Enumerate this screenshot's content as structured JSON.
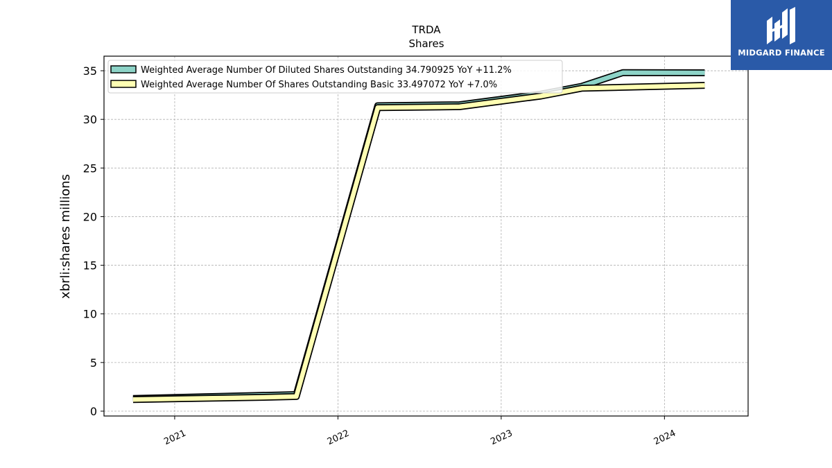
{
  "chart_data": {
    "type": "line",
    "title": "TRDA",
    "subtitle": "Shares",
    "xlabel": "",
    "ylabel": "xbrli:shares millions",
    "xlim": [
      "2020-07-27",
      "2024-07-06"
    ],
    "ylim": [
      -0.5,
      36.5
    ],
    "x_ticks": [
      "2021",
      "2022",
      "2023",
      "2024"
    ],
    "y_ticks": [
      0,
      5,
      10,
      15,
      20,
      25,
      30,
      35
    ],
    "grid": true,
    "legend_position": "top-left",
    "x": [
      "2020-09-30",
      "2021-06-30",
      "2021-09-30",
      "2022-03-31",
      "2022-09-30",
      "2023-03-31",
      "2023-06-30",
      "2023-09-30",
      "2024-03-31"
    ],
    "series": [
      {
        "name": "Weighted Average Number Of Diluted Shares Outstanding",
        "legend_label": "Weighted Average Number Of Diluted Shares Outstanding  34.790925 YoY +11.2%",
        "color": "#8dd3c7",
        "values": [
          1.3,
          1.6,
          1.7,
          31.4,
          31.5,
          32.6,
          33.4,
          34.8,
          34.79
        ]
      },
      {
        "name": "Weighted Average Number Of Shares Outstanding Basic",
        "legend_label": "Weighted Average Number Of Shares Outstanding Basic  33.497072 YoY +7.0%",
        "color": "#ffffb3",
        "values": [
          1.2,
          1.4,
          1.5,
          31.2,
          31.3,
          32.4,
          33.2,
          33.3,
          33.5
        ]
      }
    ]
  },
  "logo": {
    "text": "MIDGARD FINANCE",
    "bg": "#2a5aa8"
  }
}
